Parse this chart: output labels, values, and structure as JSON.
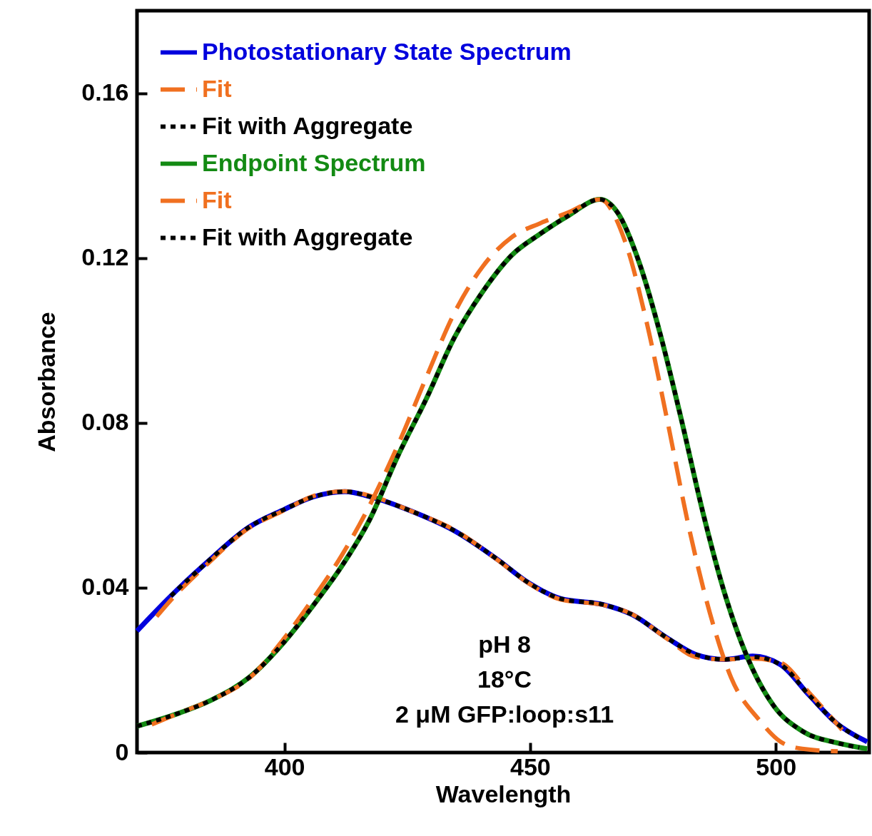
{
  "chart_data": {
    "type": "line",
    "xlabel": "Wavelength",
    "ylabel": "Absorbance",
    "xlim": [
      370,
      519
    ],
    "ylim": [
      0,
      0.18
    ],
    "xticks": [
      400,
      450,
      500
    ],
    "yticks": [
      0,
      0.04,
      0.08,
      0.12,
      0.16
    ],
    "legend": "top left",
    "grid": false,
    "annotations": [
      "pH 8",
      "18°C",
      "2 μM GFP:loop:s11"
    ],
    "series": [
      {
        "name": "Photostationary State Spectrum",
        "color": "#0000dd",
        "line_style": "solid",
        "x": [
          370,
          376.9,
          384.1,
          392.8,
          400,
          405.8,
          412.3,
          418.8,
          426,
          434.6,
          443.3,
          449.8,
          456.3,
          464.9,
          470.7,
          477.9,
          483.7,
          489.5,
          495.3,
          501,
          506.8,
          512.6,
          518.6
        ],
        "values": [
          0.0295,
          0.038,
          0.046,
          0.0547,
          0.059,
          0.062,
          0.0633,
          0.0616,
          0.0585,
          0.0538,
          0.0469,
          0.0411,
          0.0373,
          0.0359,
          0.0335,
          0.0278,
          0.0238,
          0.0226,
          0.0234,
          0.0213,
          0.0139,
          0.0069,
          0.0026
        ]
      },
      {
        "name": "Fit",
        "color": "#f07020",
        "line_style": "dashed",
        "x": [
          374,
          376.9,
          384.1,
          392.8,
          400,
          405.8,
          412.3,
          418.8,
          426,
          434.6,
          443.3,
          449.8,
          456.3,
          464.9,
          470.7,
          477.9,
          483.7,
          489.5,
          495.3,
          501,
          506.8,
          513.5
        ],
        "values": [
          0.033,
          0.037,
          0.0455,
          0.0545,
          0.0588,
          0.0622,
          0.0634,
          0.0618,
          0.0585,
          0.054,
          0.0468,
          0.041,
          0.0371,
          0.0358,
          0.0336,
          0.0276,
          0.0232,
          0.0226,
          0.0228,
          0.0218,
          0.0145,
          0.0055
        ]
      },
      {
        "name": "Fit with Aggregate",
        "color": "#000000",
        "line_style": "dotted",
        "x": [
          376.9,
          384.1,
          392.8,
          400,
          405.8,
          412.3,
          418.8,
          426,
          434.6,
          443.3,
          449.8,
          456.3,
          464.9,
          470.7,
          477.9,
          483.7,
          489.5,
          495.3,
          501,
          506.8,
          512.6,
          517
        ],
        "values": [
          0.038,
          0.046,
          0.0547,
          0.059,
          0.062,
          0.0633,
          0.0616,
          0.0585,
          0.0538,
          0.0469,
          0.0411,
          0.0373,
          0.0359,
          0.0335,
          0.0278,
          0.0238,
          0.0226,
          0.0232,
          0.0213,
          0.0139,
          0.0069,
          0.0035
        ]
      },
      {
        "name": "Endpoint Spectrum",
        "color": "#138a13",
        "line_style": "solid",
        "x": [
          370,
          378.4,
          385.6,
          392.8,
          400,
          405.8,
          411.6,
          417.3,
          423.1,
          428.9,
          434.6,
          440.4,
          446.2,
          452,
          457.7,
          464.2,
          467.8,
          472.2,
          476.5,
          480.8,
          485.2,
          489.5,
          493.8,
          499.6,
          505.4,
          512.6,
          518.6
        ],
        "values": [
          0.0064,
          0.0095,
          0.013,
          0.0182,
          0.0269,
          0.0356,
          0.0451,
          0.0564,
          0.072,
          0.0859,
          0.1007,
          0.1119,
          0.1206,
          0.1258,
          0.1302,
          0.1342,
          0.131,
          0.1189,
          0.1015,
          0.0807,
          0.0581,
          0.039,
          0.0243,
          0.0113,
          0.0052,
          0.0023,
          0.0009
        ]
      },
      {
        "name": "Fit",
        "color": "#f07020",
        "line_style": "dashed",
        "x": [
          373,
          378.4,
          385.6,
          392.8,
          400,
          405.8,
          411.6,
          417.3,
          423.1,
          428.9,
          434.6,
          440.4,
          446.2,
          452,
          457.7,
          464.2,
          469.3,
          473.6,
          477.9,
          482.3,
          486.6,
          490.9,
          496.7,
          501,
          505.4,
          512.6
        ],
        "values": [
          0.0068,
          0.0095,
          0.013,
          0.018,
          0.0278,
          0.0373,
          0.0477,
          0.0599,
          0.0746,
          0.0911,
          0.1067,
          0.118,
          0.125,
          0.1284,
          0.131,
          0.1342,
          0.1241,
          0.105,
          0.0807,
          0.0547,
          0.0338,
          0.0182,
          0.0078,
          0.0026,
          0.0009,
          0.0003
        ]
      },
      {
        "name": "Fit with Aggregate",
        "color": "#000000",
        "line_style": "dotted",
        "x": [
          370,
          378.4,
          385.6,
          392.8,
          400,
          405.8,
          411.6,
          417.3,
          423.1,
          428.9,
          434.6,
          440.4,
          446.2,
          452,
          457.7,
          464.2,
          467.8,
          472.2,
          476.5,
          480.8,
          485.2,
          489.5,
          493.8,
          499.6,
          505.4,
          512.6,
          517
        ],
        "values": [
          0.0064,
          0.0095,
          0.013,
          0.0182,
          0.0269,
          0.0356,
          0.0451,
          0.0564,
          0.072,
          0.0859,
          0.1007,
          0.1119,
          0.1206,
          0.1258,
          0.1302,
          0.1342,
          0.131,
          0.1189,
          0.1015,
          0.0807,
          0.0581,
          0.039,
          0.0243,
          0.0113,
          0.0052,
          0.0023,
          0.0012
        ]
      }
    ]
  }
}
